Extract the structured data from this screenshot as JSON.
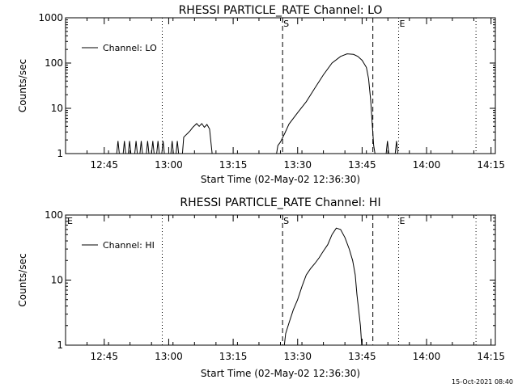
{
  "footer": {
    "timestamp": "15-Oct-2021 08:40"
  },
  "chart_data": [
    {
      "type": "line",
      "title": "RHESSI PARTICLE_RATE Channel: LO",
      "xlabel": "Start Time (02-May-02 12:36:30)",
      "ylabel": "Counts/sec",
      "yscale": "log",
      "ylim": [
        1,
        1000
      ],
      "yticks": [
        1,
        10,
        100,
        1000
      ],
      "ytick_labels": [
        "1",
        "10",
        "100",
        "1000"
      ],
      "xlim": [
        0,
        100
      ],
      "xticks": [
        9,
        24,
        39,
        54,
        69,
        84,
        99
      ],
      "xtick_labels": [
        "12:45",
        "13:00",
        "13:15",
        "13:30",
        "13:45",
        "14:00",
        "14:15"
      ],
      "legend": {
        "position": "top-left",
        "entries": [
          "Channel: LO"
        ]
      },
      "markers": [
        {
          "x": 22.5,
          "style": "dotted",
          "label": ""
        },
        {
          "x": 50.5,
          "style": "dashed",
          "label": "S"
        },
        {
          "x": 71.5,
          "style": "dashed",
          "label": ""
        },
        {
          "x": 77.5,
          "style": "dotted",
          "label": "E"
        },
        {
          "x": 95.5,
          "style": "dotted",
          "label": ""
        }
      ],
      "series": [
        {
          "name": "Channel: LO",
          "segments": [
            [
              [
                11.9,
                1
              ],
              [
                12.2,
                1.9
              ],
              [
                12.5,
                1
              ]
            ],
            [
              [
                13.4,
                1
              ],
              [
                13.7,
                1.9
              ],
              [
                14.0,
                1
              ]
            ],
            [
              [
                14.6,
                1
              ],
              [
                14.9,
                1.9
              ],
              [
                15.2,
                1
              ]
            ],
            [
              [
                16.1,
                1
              ],
              [
                16.4,
                1.9
              ],
              [
                16.7,
                1
              ]
            ],
            [
              [
                17.3,
                1
              ],
              [
                17.6,
                1.9
              ],
              [
                17.9,
                1
              ]
            ],
            [
              [
                18.8,
                1
              ],
              [
                19.1,
                1.9
              ],
              [
                19.4,
                1
              ]
            ],
            [
              [
                20.0,
                1
              ],
              [
                20.3,
                1.9
              ],
              [
                20.6,
                1
              ]
            ],
            [
              [
                21.2,
                1
              ],
              [
                21.5,
                1.9
              ],
              [
                21.8,
                1
              ]
            ],
            [
              [
                22.4,
                1
              ],
              [
                22.7,
                1.9
              ],
              [
                23.0,
                1
              ]
            ],
            [
              [
                24.5,
                1
              ],
              [
                24.8,
                1.9
              ],
              [
                25.1,
                1
              ]
            ],
            [
              [
                25.7,
                1
              ],
              [
                26.0,
                1.9
              ],
              [
                26.3,
                1
              ]
            ],
            [
              [
                27.2,
                1
              ],
              [
                27.5,
                2.3
              ],
              [
                28.4,
                2.8
              ],
              [
                29.0,
                3.2
              ],
              [
                29.6,
                3.8
              ],
              [
                30.5,
                4.6
              ],
              [
                31.1,
                4.0
              ],
              [
                31.7,
                4.6
              ],
              [
                32.3,
                3.8
              ],
              [
                32.9,
                4.4
              ],
              [
                33.5,
                3.5
              ],
              [
                34.1,
                1
              ]
            ],
            [
              [
                49.1,
                1
              ],
              [
                49.4,
                1.5
              ],
              [
                50.0,
                1.8
              ],
              [
                51.0,
                2.8
              ],
              [
                52.0,
                4.5
              ],
              [
                54.0,
                8
              ],
              [
                56.0,
                14
              ],
              [
                58.0,
                28
              ],
              [
                60.0,
                55
              ],
              [
                62.0,
                100
              ],
              [
                64.0,
                140
              ],
              [
                65.5,
                160
              ],
              [
                67.0,
                155
              ],
              [
                68.0,
                140
              ],
              [
                69.0,
                115
              ],
              [
                70.0,
                80
              ],
              [
                70.5,
                45
              ],
              [
                71.0,
                15
              ],
              [
                71.4,
                4
              ],
              [
                71.7,
                1.5
              ],
              [
                72.0,
                1
              ]
            ],
            [
              [
                74.6,
                1
              ],
              [
                74.9,
                1.9
              ],
              [
                75.2,
                1
              ]
            ],
            [
              [
                76.7,
                1
              ],
              [
                77.0,
                1.9
              ],
              [
                77.3,
                1
              ]
            ]
          ]
        }
      ]
    },
    {
      "type": "line",
      "title": "RHESSI PARTICLE_RATE Channel: HI",
      "xlabel": "Start Time (02-May-02 12:36:30)",
      "ylabel": "Counts/sec",
      "yscale": "log",
      "ylim": [
        1,
        100
      ],
      "yticks": [
        1,
        10,
        100
      ],
      "ytick_labels": [
        "1",
        "10",
        "100"
      ],
      "xlim": [
        0,
        100
      ],
      "xticks": [
        9,
        24,
        39,
        54,
        69,
        84,
        99
      ],
      "xtick_labels": [
        "12:45",
        "13:00",
        "13:15",
        "13:30",
        "13:45",
        "14:00",
        "14:15"
      ],
      "legend": {
        "position": "top-left",
        "entries": [
          "Channel: HI"
        ]
      },
      "corner_label": "E",
      "markers": [
        {
          "x": 22.5,
          "style": "dotted",
          "label": ""
        },
        {
          "x": 50.5,
          "style": "dashed",
          "label": "S"
        },
        {
          "x": 71.5,
          "style": "dashed",
          "label": ""
        },
        {
          "x": 77.5,
          "style": "dotted",
          "label": "E"
        },
        {
          "x": 95.5,
          "style": "dotted",
          "label": ""
        }
      ],
      "series": [
        {
          "name": "Channel: HI",
          "segments": [
            [
              [
                50.9,
                1
              ],
              [
                51.2,
                1.5
              ],
              [
                52.0,
                2.2
              ],
              [
                53.0,
                3.5
              ],
              [
                54.0,
                5
              ],
              [
                55.0,
                8
              ],
              [
                56.0,
                12
              ],
              [
                57.0,
                15
              ],
              [
                58.0,
                18
              ],
              [
                59.0,
                22
              ],
              [
                60.0,
                28
              ],
              [
                61.0,
                35
              ],
              [
                62.0,
                50
              ],
              [
                63.0,
                63
              ],
              [
                64.0,
                60
              ],
              [
                65.0,
                45
              ],
              [
                66.0,
                30
              ],
              [
                66.8,
                20
              ],
              [
                67.4,
                12
              ],
              [
                67.8,
                6
              ],
              [
                68.2,
                3.5
              ],
              [
                68.6,
                2
              ],
              [
                68.9,
                1
              ]
            ]
          ]
        }
      ]
    }
  ]
}
